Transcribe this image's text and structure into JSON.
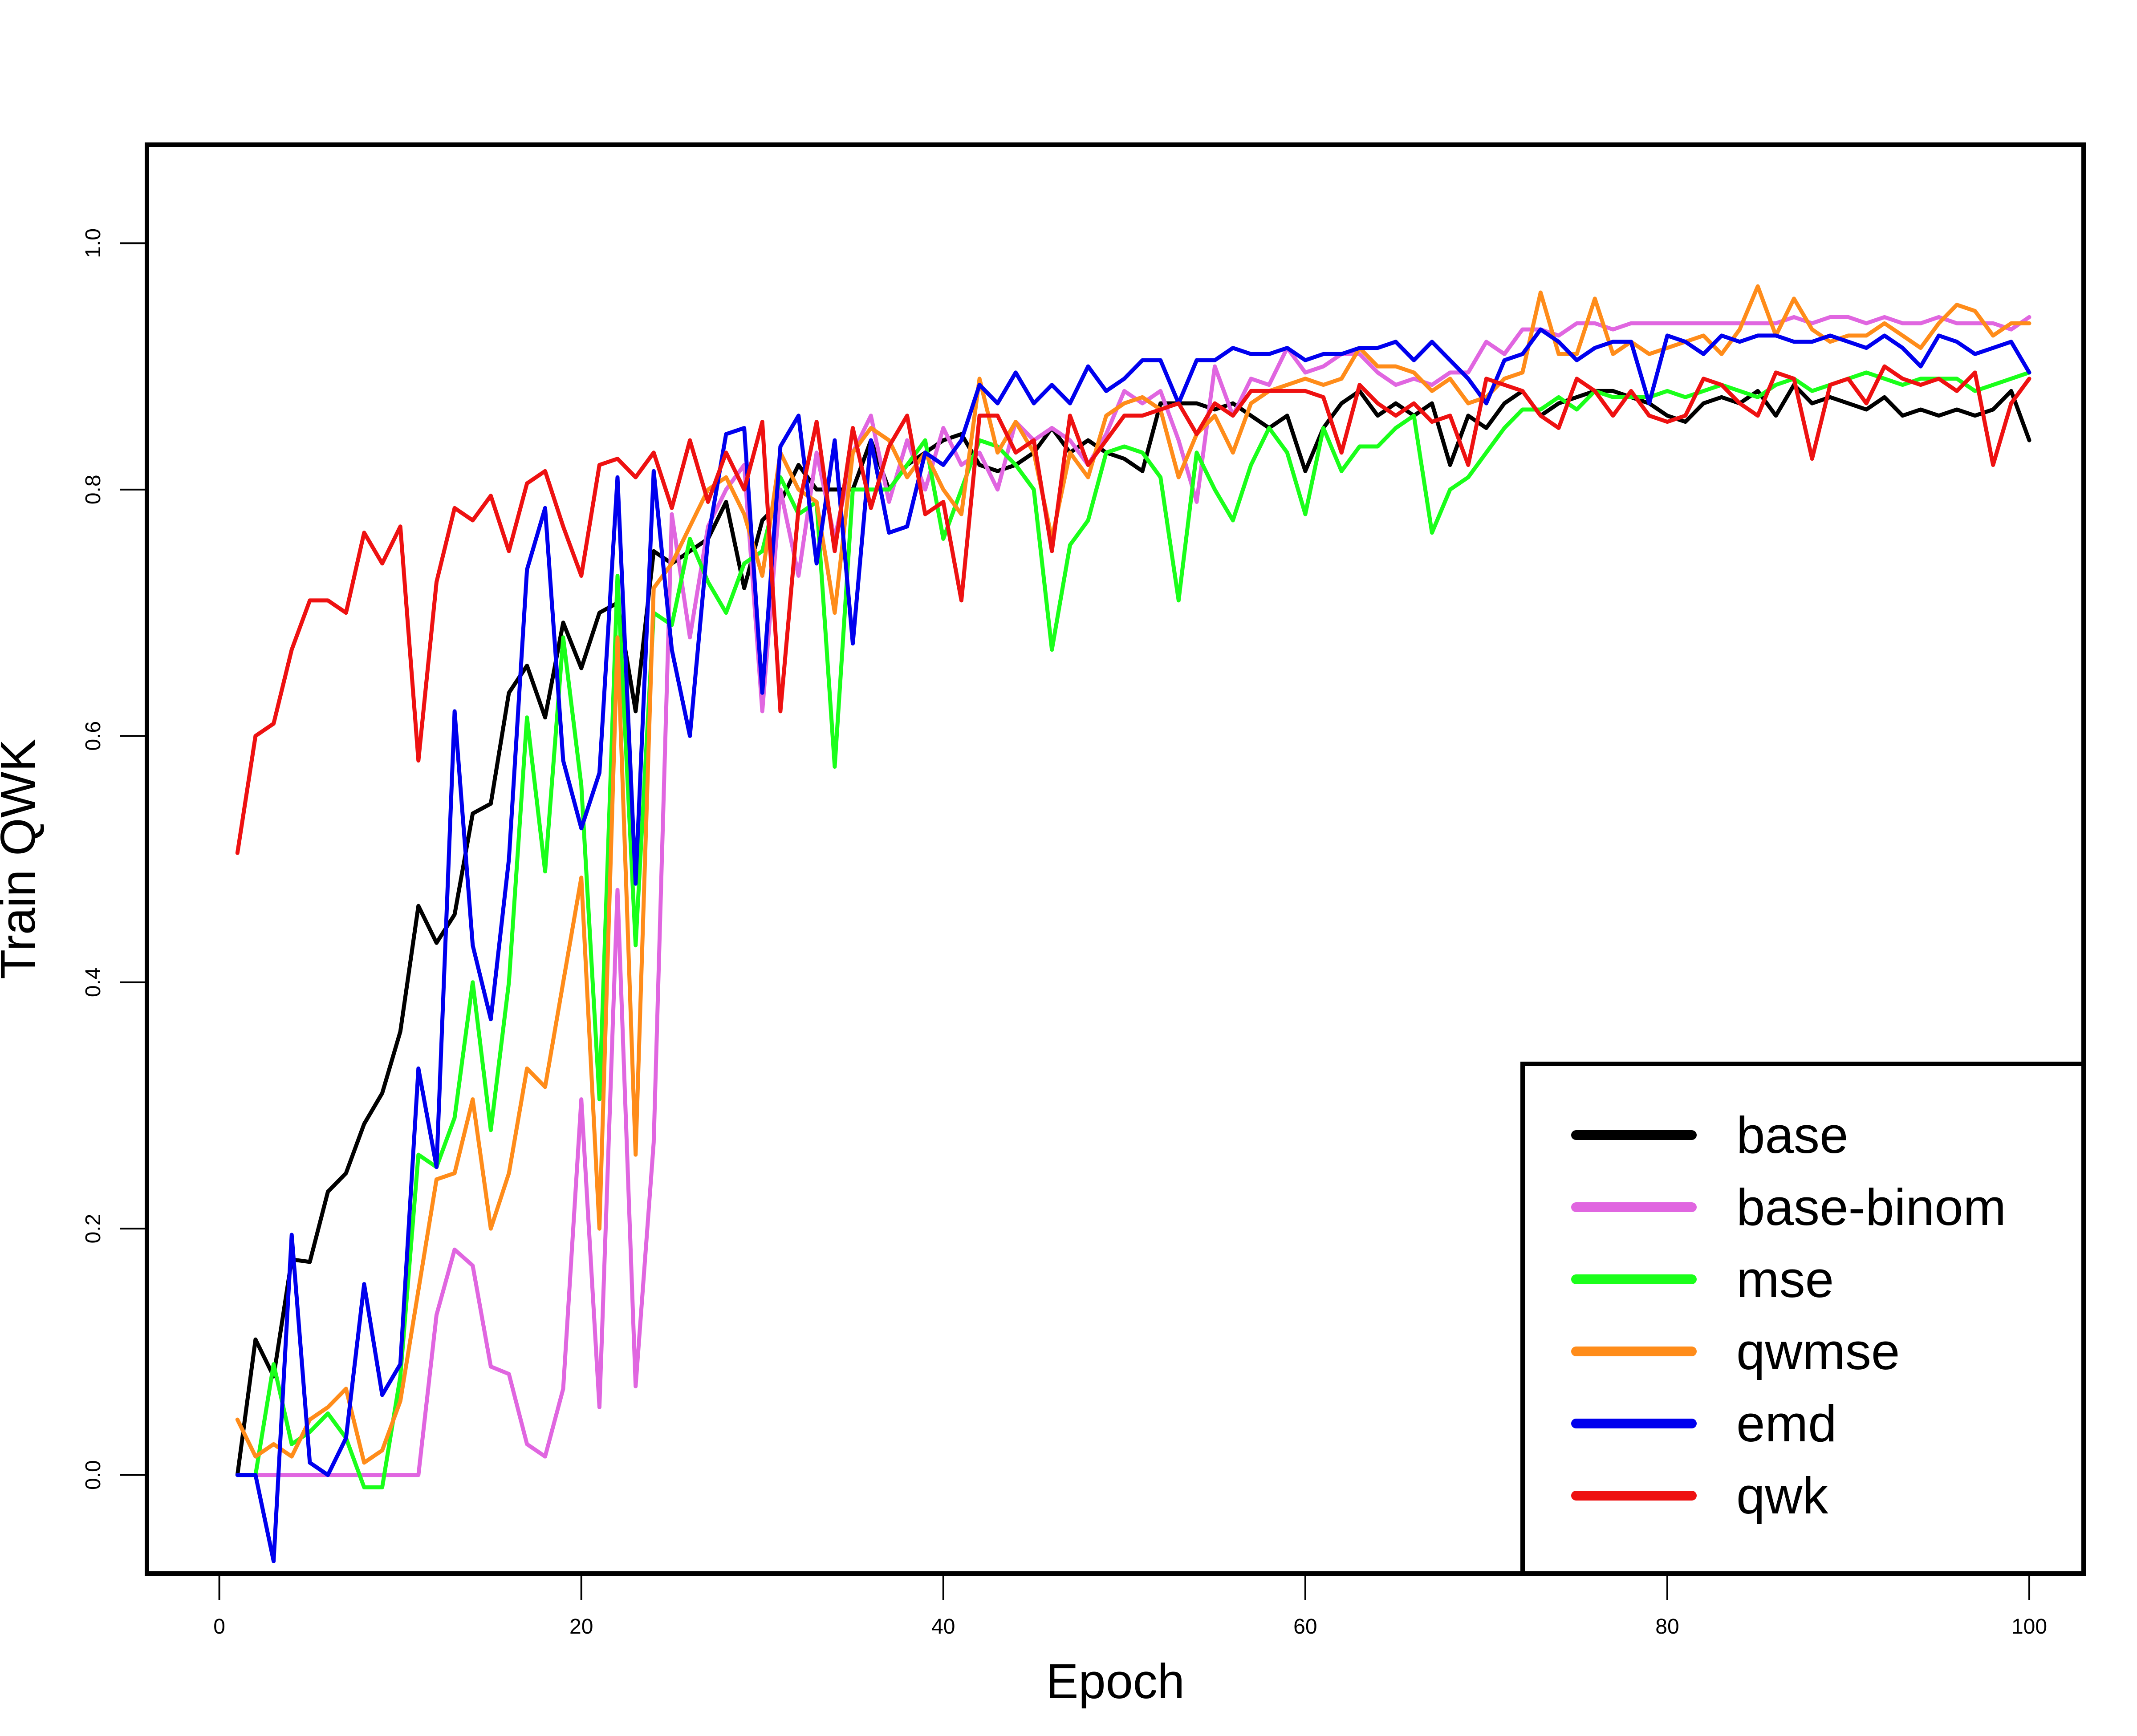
{
  "chart_data": {
    "type": "line",
    "xlabel": "Epoch",
    "ylabel": "Train QWK",
    "xlim": [
      -4,
      103
    ],
    "ylim": [
      -0.08,
      1.08
    ],
    "xticks": [
      0,
      20,
      40,
      60,
      80,
      100
    ],
    "xtick_labels": [
      "0",
      "20",
      "40",
      "60",
      "80",
      "100"
    ],
    "yticks": [
      0.0,
      0.2,
      0.4,
      0.6,
      0.8,
      1.0
    ],
    "ytick_labels": [
      "0.0",
      "0.2",
      "0.4",
      "0.6",
      "0.8",
      "1.0"
    ],
    "grid": false,
    "legend_position": "bottom-right",
    "x": [
      1,
      2,
      3,
      4,
      5,
      6,
      7,
      8,
      9,
      10,
      11,
      12,
      13,
      14,
      15,
      16,
      17,
      18,
      19,
      20,
      21,
      22,
      23,
      24,
      25,
      26,
      27,
      28,
      29,
      30,
      31,
      32,
      33,
      34,
      35,
      36,
      37,
      38,
      39,
      40,
      41,
      42,
      43,
      44,
      45,
      46,
      47,
      48,
      49,
      50,
      51,
      52,
      53,
      54,
      55,
      56,
      57,
      58,
      59,
      60,
      61,
      62,
      63,
      64,
      65,
      66,
      67,
      68,
      69,
      70,
      71,
      72,
      73,
      74,
      75,
      76,
      77,
      78,
      79,
      80,
      81,
      82,
      83,
      84,
      85,
      86,
      87,
      88,
      89,
      90,
      91,
      92,
      93,
      94,
      95,
      96,
      97,
      98,
      99,
      100
    ],
    "series": [
      {
        "name": "base",
        "color": "#000000",
        "values": [
          0.0,
          0.11,
          0.08,
          0.175,
          0.173,
          0.23,
          0.245,
          0.285,
          0.31,
          0.36,
          0.462,
          0.432,
          0.455,
          0.537,
          0.545,
          0.635,
          0.657,
          0.615,
          0.692,
          0.655,
          0.7,
          0.708,
          0.62,
          0.75,
          0.74,
          0.75,
          0.76,
          0.79,
          0.72,
          0.775,
          0.79,
          0.82,
          0.8,
          0.8,
          0.8,
          0.84,
          0.8,
          0.82,
          0.83,
          0.84,
          0.845,
          0.82,
          0.815,
          0.82,
          0.83,
          0.85,
          0.83,
          0.84,
          0.83,
          0.825,
          0.815,
          0.87,
          0.87,
          0.87,
          0.865,
          0.87,
          0.86,
          0.85,
          0.86,
          0.815,
          0.85,
          0.87,
          0.88,
          0.86,
          0.87,
          0.86,
          0.87,
          0.82,
          0.86,
          0.85,
          0.87,
          0.88,
          0.86,
          0.87,
          0.875,
          0.88,
          0.88,
          0.875,
          0.87,
          0.86,
          0.855,
          0.87,
          0.875,
          0.87,
          0.88,
          0.86,
          0.885,
          0.87,
          0.875,
          0.87,
          0.865,
          0.875,
          0.86,
          0.865,
          0.86,
          0.865,
          0.86,
          0.865,
          0.88,
          0.84
        ]
      },
      {
        "name": "base-binom",
        "color": "#e066e0",
        "values": [
          0.0,
          0.0,
          0.0,
          0.0,
          0.0,
          0.0,
          0.0,
          0.0,
          0.0,
          0.0,
          0.0,
          0.13,
          0.183,
          0.17,
          0.088,
          0.082,
          0.025,
          0.015,
          0.07,
          0.305,
          0.055,
          0.475,
          0.072,
          0.27,
          0.78,
          0.68,
          0.77,
          0.8,
          0.82,
          0.62,
          0.8,
          0.73,
          0.83,
          0.76,
          0.83,
          0.86,
          0.79,
          0.84,
          0.8,
          0.85,
          0.82,
          0.83,
          0.8,
          0.855,
          0.84,
          0.85,
          0.84,
          0.82,
          0.845,
          0.88,
          0.87,
          0.88,
          0.84,
          0.79,
          0.9,
          0.86,
          0.89,
          0.885,
          0.915,
          0.895,
          0.9,
          0.91,
          0.91,
          0.895,
          0.885,
          0.89,
          0.885,
          0.895,
          0.895,
          0.92,
          0.91,
          0.93,
          0.93,
          0.925,
          0.935,
          0.935,
          0.93,
          0.935,
          0.935,
          0.935,
          0.935,
          0.935,
          0.935,
          0.935,
          0.935,
          0.935,
          0.94,
          0.935,
          0.94,
          0.94,
          0.935,
          0.94,
          0.935,
          0.935,
          0.94,
          0.935,
          0.935,
          0.935,
          0.93,
          0.94
        ]
      },
      {
        "name": "mse",
        "color": "#1aff1a",
        "values": [
          0.0,
          0.0,
          0.09,
          0.025,
          0.035,
          0.05,
          0.03,
          -0.01,
          -0.01,
          0.08,
          0.26,
          0.25,
          0.29,
          0.4,
          0.28,
          0.4,
          0.615,
          0.49,
          0.68,
          0.56,
          0.305,
          0.73,
          0.43,
          0.7,
          0.69,
          0.76,
          0.725,
          0.7,
          0.74,
          0.75,
          0.81,
          0.78,
          0.79,
          0.575,
          0.8,
          0.8,
          0.8,
          0.82,
          0.84,
          0.76,
          0.8,
          0.84,
          0.835,
          0.82,
          0.8,
          0.67,
          0.755,
          0.775,
          0.83,
          0.835,
          0.83,
          0.81,
          0.71,
          0.83,
          0.8,
          0.775,
          0.82,
          0.85,
          0.83,
          0.78,
          0.85,
          0.815,
          0.835,
          0.835,
          0.85,
          0.86,
          0.765,
          0.8,
          0.81,
          0.83,
          0.85,
          0.865,
          0.865,
          0.875,
          0.865,
          0.88,
          0.875,
          0.875,
          0.875,
          0.88,
          0.875,
          0.88,
          0.885,
          0.88,
          0.875,
          0.885,
          0.89,
          0.88,
          0.885,
          0.89,
          0.895,
          0.89,
          0.885,
          0.89,
          0.89,
          0.89,
          0.88,
          0.885,
          0.89,
          0.895
        ]
      },
      {
        "name": "qwmse",
        "color": "#ff8c1a",
        "values": [
          0.045,
          0.015,
          0.025,
          0.015,
          0.045,
          0.055,
          0.07,
          0.01,
          0.02,
          0.06,
          0.15,
          0.24,
          0.245,
          0.305,
          0.2,
          0.245,
          0.33,
          0.315,
          0.4,
          0.485,
          0.2,
          0.68,
          0.26,
          0.72,
          0.74,
          0.77,
          0.8,
          0.81,
          0.78,
          0.73,
          0.83,
          0.8,
          0.79,
          0.7,
          0.83,
          0.85,
          0.84,
          0.81,
          0.83,
          0.8,
          0.78,
          0.89,
          0.83,
          0.855,
          0.83,
          0.76,
          0.83,
          0.81,
          0.86,
          0.87,
          0.875,
          0.865,
          0.81,
          0.845,
          0.86,
          0.83,
          0.87,
          0.88,
          0.885,
          0.89,
          0.885,
          0.89,
          0.915,
          0.9,
          0.9,
          0.895,
          0.88,
          0.89,
          0.87,
          0.875,
          0.89,
          0.895,
          0.96,
          0.91,
          0.91,
          0.955,
          0.91,
          0.92,
          0.91,
          0.915,
          0.92,
          0.925,
          0.91,
          0.93,
          0.965,
          0.925,
          0.955,
          0.93,
          0.92,
          0.925,
          0.925,
          0.935,
          0.925,
          0.915,
          0.935,
          0.95,
          0.945,
          0.925,
          0.935,
          0.935
        ]
      },
      {
        "name": "emd",
        "color": "#0000ee",
        "values": [
          0.0,
          0.0,
          -0.07,
          0.195,
          0.01,
          0.0,
          0.03,
          0.155,
          0.065,
          0.09,
          0.33,
          0.25,
          0.62,
          0.43,
          0.37,
          0.5,
          0.735,
          0.785,
          0.58,
          0.525,
          0.57,
          0.81,
          0.48,
          0.815,
          0.67,
          0.6,
          0.76,
          0.845,
          0.85,
          0.635,
          0.835,
          0.86,
          0.74,
          0.84,
          0.675,
          0.84,
          0.765,
          0.77,
          0.83,
          0.82,
          0.84,
          0.885,
          0.87,
          0.895,
          0.87,
          0.885,
          0.87,
          0.9,
          0.88,
          0.89,
          0.905,
          0.905,
          0.87,
          0.905,
          0.905,
          0.915,
          0.91,
          0.91,
          0.915,
          0.905,
          0.91,
          0.91,
          0.915,
          0.915,
          0.92,
          0.905,
          0.92,
          0.905,
          0.89,
          0.87,
          0.905,
          0.91,
          0.93,
          0.92,
          0.905,
          0.915,
          0.92,
          0.92,
          0.87,
          0.925,
          0.92,
          0.91,
          0.925,
          0.92,
          0.925,
          0.925,
          0.92,
          0.92,
          0.925,
          0.92,
          0.915,
          0.925,
          0.915,
          0.9,
          0.925,
          0.92,
          0.91,
          0.915,
          0.92,
          0.895
        ]
      },
      {
        "name": "qwk",
        "color": "#ee1111",
        "values": [
          0.505,
          0.6,
          0.61,
          0.67,
          0.71,
          0.71,
          0.7,
          0.765,
          0.74,
          0.77,
          0.58,
          0.725,
          0.785,
          0.775,
          0.795,
          0.75,
          0.805,
          0.815,
          0.77,
          0.73,
          0.82,
          0.825,
          0.81,
          0.83,
          0.785,
          0.84,
          0.79,
          0.83,
          0.8,
          0.855,
          0.62,
          0.785,
          0.855,
          0.75,
          0.85,
          0.785,
          0.835,
          0.86,
          0.78,
          0.79,
          0.71,
          0.86,
          0.86,
          0.83,
          0.84,
          0.75,
          0.86,
          0.82,
          0.84,
          0.86,
          0.86,
          0.865,
          0.87,
          0.845,
          0.87,
          0.86,
          0.88,
          0.88,
          0.88,
          0.88,
          0.875,
          0.83,
          0.885,
          0.87,
          0.86,
          0.87,
          0.855,
          0.86,
          0.82,
          0.89,
          0.885,
          0.88,
          0.86,
          0.85,
          0.89,
          0.88,
          0.86,
          0.88,
          0.86,
          0.855,
          0.86,
          0.89,
          0.885,
          0.87,
          0.86,
          0.895,
          0.89,
          0.825,
          0.885,
          0.89,
          0.87,
          0.9,
          0.89,
          0.885,
          0.89,
          0.88,
          0.895,
          0.82,
          0.87,
          0.89
        ]
      }
    ]
  }
}
